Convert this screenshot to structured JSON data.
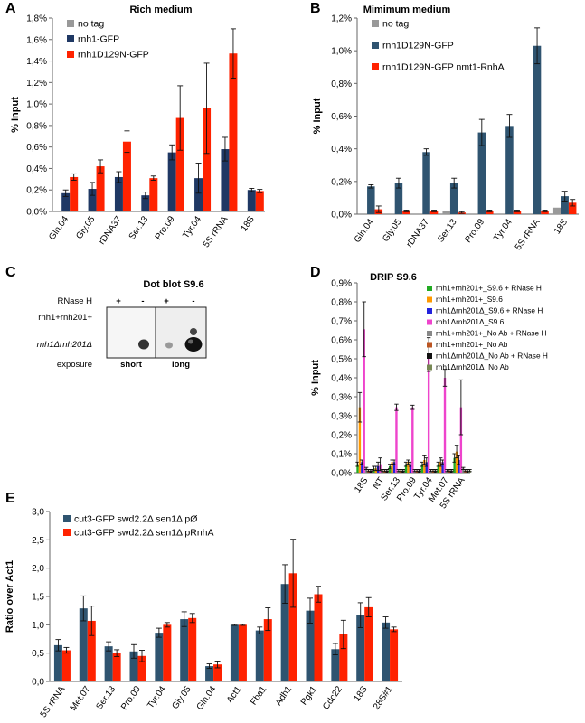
{
  "panels": {
    "A": {
      "letter": "A"
    },
    "B": {
      "letter": "B"
    },
    "C": {
      "letter": "C",
      "title": "Dot blot S9.6",
      "rnase_label": "RNase H",
      "plus": "+",
      "minus": "-",
      "row1": "rnh1+rnh201+",
      "row2": "rnh1Δrnh201Δ",
      "exposure_label": "exposure",
      "short": "short",
      "long": "long"
    },
    "D": {
      "letter": "D"
    },
    "E": {
      "letter": "E"
    }
  },
  "chart_data": [
    {
      "id": "A",
      "type": "bar",
      "title": "Rich medium",
      "ylabel": "% Input",
      "ylim": [
        0,
        1.8
      ],
      "yticks": [
        "0,0%",
        "0,2%",
        "0,4%",
        "0,6%",
        "0,8%",
        "1,0%",
        "1,2%",
        "1,4%",
        "1,6%",
        "1,8%"
      ],
      "legend_position": "top-left",
      "grid": false,
      "categories": [
        "Gln.04",
        "Gly.05",
        "rDNA37",
        "Ser.13",
        "Pro.09",
        "Tyr.04",
        "5S rRNA",
        "18S"
      ],
      "series": [
        {
          "name": "no tag",
          "color": "#999999",
          "values": [
            0,
            0,
            0,
            0,
            0,
            0,
            0,
            0
          ],
          "errors": [
            0,
            0,
            0,
            0,
            0,
            0,
            0,
            0
          ]
        },
        {
          "name": "rnh1-GFP",
          "color": "#1f3864",
          "values": [
            0.17,
            0.21,
            0.32,
            0.15,
            0.55,
            0.31,
            0.58,
            0.2
          ],
          "errors": [
            0.03,
            0.06,
            0.05,
            0.03,
            0.07,
            0.14,
            0.11,
            0.015
          ]
        },
        {
          "name": "rnh1D129N-GFP",
          "color": "#ff2200",
          "values": [
            0.32,
            0.42,
            0.65,
            0.31,
            0.87,
            0.96,
            1.47,
            0.19
          ],
          "errors": [
            0.03,
            0.06,
            0.1,
            0.02,
            0.3,
            0.42,
            0.23,
            0.015
          ]
        }
      ]
    },
    {
      "id": "B",
      "type": "bar",
      "title": "Mimimum medium",
      "ylabel": "% Input",
      "ylim": [
        0,
        1.2
      ],
      "yticks": [
        "0,0%",
        "0,2%",
        "0,4%",
        "0,6%",
        "0,8%",
        "1,0%",
        "1,2%"
      ],
      "legend_position": "top-left",
      "grid": false,
      "categories": [
        "Gln.04",
        "Gly.05",
        "rDNA37",
        "Ser.13",
        "Pro.09",
        "Tyr.04",
        "5S rRNA",
        "18S"
      ],
      "series": [
        {
          "name": "no tag",
          "color": "#999999",
          "values": [
            0.0,
            0.0,
            0.0,
            0.02,
            0.0,
            0.0,
            0.0,
            0.04
          ],
          "errors": [
            0,
            0,
            0,
            0,
            0,
            0,
            0,
            0
          ]
        },
        {
          "name": "rnh1D129N-GFP",
          "color": "#2f5470",
          "values": [
            0.17,
            0.19,
            0.38,
            0.19,
            0.5,
            0.54,
            1.03,
            0.11
          ],
          "errors": [
            0.01,
            0.03,
            0.02,
            0.03,
            0.08,
            0.07,
            0.11,
            0.03
          ]
        },
        {
          "name": "rnh1D129N-GFP nmt1-RnhA",
          "color": "#ff2200",
          "values": [
            0.03,
            0.02,
            0.02,
            0.01,
            0.02,
            0.02,
            0.02,
            0.07
          ],
          "errors": [
            0.02,
            0.005,
            0.005,
            0.005,
            0.005,
            0.005,
            0.005,
            0.02
          ]
        }
      ]
    },
    {
      "id": "D",
      "type": "bar",
      "title": "DRIP S9.6",
      "ylabel": "% Input",
      "ylim": [
        0,
        0.9
      ],
      "yticks": [
        "0,0%",
        "0,1%",
        "0,2%",
        "0,3%",
        "0,3%",
        "0,4%",
        "0,5%",
        "0,6%",
        "0,7%",
        "0,8%",
        "0,9%"
      ],
      "legend_position": "top-right",
      "grid": false,
      "categories": [
        "18S",
        "NT",
        "Ser.13",
        "Pro.09",
        "Tyr.04",
        "Met.07",
        "5S rRNA"
      ],
      "series": [
        {
          "name": "rnh1+rnh201+_S9.6 + RNase H",
          "color": "#22aa22",
          "values": [
            0.04,
            0.02,
            0.03,
            0.04,
            0.04,
            0.04,
            0.07
          ],
          "errors": [
            0.01,
            0.01,
            0.01,
            0.01,
            0.01,
            0.01,
            0.02
          ]
        },
        {
          "name": "rnh1+rnh201+_S9.6",
          "color": "#ff9900",
          "values": [
            0.31,
            0.02,
            0.05,
            0.05,
            0.06,
            0.05,
            0.1
          ],
          "errors": [
            0.07,
            0.01,
            0.01,
            0.01,
            0.02,
            0.02,
            0.03
          ]
        },
        {
          "name": "rnh1Δrnh201Δ_S9.6 + RNase H",
          "color": "#2222dd",
          "values": [
            0.05,
            0.03,
            0.05,
            0.04,
            0.05,
            0.05,
            0.06
          ],
          "errors": [
            0.01,
            0.02,
            0.01,
            0.01,
            0.02,
            0.01,
            0.02
          ]
        },
        {
          "name": "rnh1Δrnh201Δ_S9.6",
          "color": "#ee44cc",
          "values": [
            0.68,
            0.04,
            0.31,
            0.31,
            0.56,
            0.45,
            0.31
          ],
          "errors": [
            0.13,
            0.03,
            0.015,
            0.01,
            0.08,
            0.04,
            0.13
          ]
        },
        {
          "name": "rnh1+rnh201+_No Ab + RNase H",
          "color": "#888888",
          "values": [
            0.02,
            0.01,
            0.01,
            0.01,
            0.01,
            0.01,
            0.02
          ],
          "errors": [
            0.005,
            0.005,
            0.005,
            0.005,
            0.005,
            0.005,
            0.005
          ]
        },
        {
          "name": "rnh1+rnh201+_No Ab",
          "color": "#bb5522",
          "values": [
            0.01,
            0.01,
            0.01,
            0.01,
            0.01,
            0.01,
            0.01
          ],
          "errors": [
            0.005,
            0.005,
            0.005,
            0.005,
            0.005,
            0.005,
            0.005
          ]
        },
        {
          "name": "rnh1Δrnh201Δ_No Ab + RNase H",
          "color": "#111111",
          "values": [
            0.01,
            0.01,
            0.01,
            0.01,
            0.01,
            0.01,
            0.01
          ],
          "errors": [
            0.005,
            0.005,
            0.005,
            0.005,
            0.005,
            0.005,
            0.005
          ]
        },
        {
          "name": "rnh1Δrnh201Δ_No Ab",
          "color": "#778855",
          "values": [
            0.01,
            0.01,
            0.01,
            0.01,
            0.01,
            0.01,
            0.01
          ],
          "errors": [
            0.005,
            0.005,
            0.005,
            0.005,
            0.005,
            0.005,
            0.005
          ]
        }
      ]
    },
    {
      "id": "E",
      "type": "bar",
      "title": "",
      "ylabel": "Ratio over Act1",
      "ylim": [
        0,
        3.0
      ],
      "yticks": [
        "0,0",
        "0,5",
        "1,0",
        "1,5",
        "2,0",
        "2,5",
        "3,0"
      ],
      "legend_position": "top-left",
      "grid": false,
      "categories": [
        "5S rRNA",
        "Met.07",
        "Ser.13",
        "Pro.09",
        "Tyr.04",
        "Gly.05",
        "Gln.04",
        "Act1",
        "Fba1",
        "Adh1",
        "Pgk1",
        "Cdc22",
        "18S",
        "28S#1"
      ],
      "series": [
        {
          "name": "cut3-GFP swd2.2Δ sen1Δ pØ",
          "color": "#2f5470",
          "values": [
            0.64,
            1.29,
            0.62,
            0.53,
            0.86,
            1.1,
            0.27,
            1.0,
            0.9,
            1.72,
            1.25,
            0.57,
            1.17,
            1.04
          ],
          "errors": [
            0.1,
            0.22,
            0.08,
            0.12,
            0.08,
            0.13,
            0.04,
            0.01,
            0.06,
            0.34,
            0.22,
            0.1,
            0.22,
            0.1
          ]
        },
        {
          "name": "cut3-GFP swd2.2Δ sen1Δ pRnhA",
          "color": "#ff2200",
          "values": [
            0.55,
            1.07,
            0.5,
            0.45,
            1.0,
            1.12,
            0.3,
            1.0,
            1.1,
            1.91,
            1.54,
            0.83,
            1.31,
            0.92
          ],
          "errors": [
            0.05,
            0.26,
            0.06,
            0.1,
            0.04,
            0.08,
            0.06,
            0.01,
            0.2,
            0.6,
            0.14,
            0.25,
            0.17,
            0.04
          ]
        }
      ]
    }
  ]
}
